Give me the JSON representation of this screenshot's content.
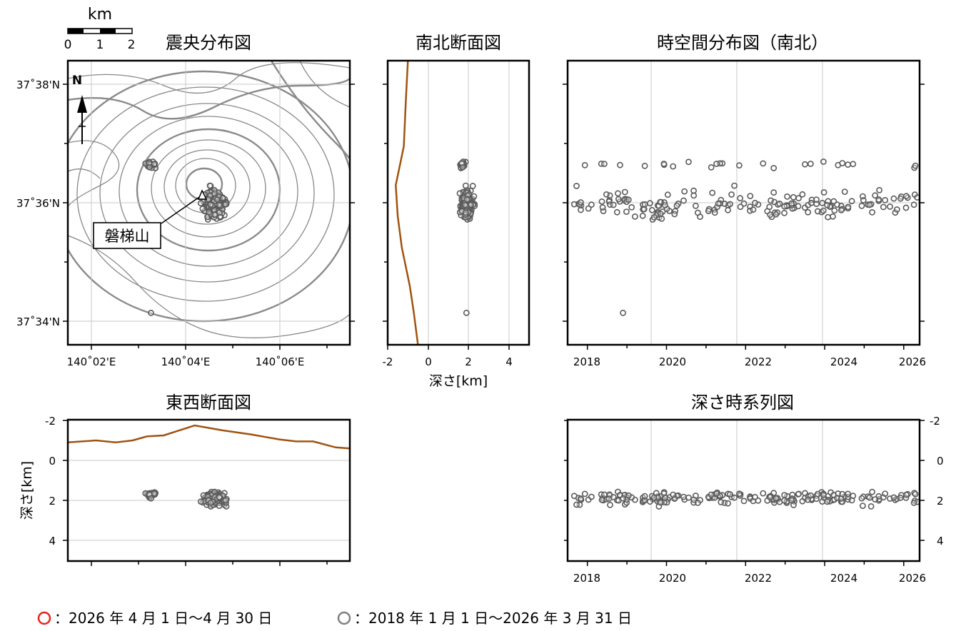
{
  "scalebar": {
    "unit": "km",
    "ticks": [
      "0",
      "1",
      "2"
    ]
  },
  "panels": {
    "map_title": "震央分布図",
    "ns_title": "南北断面図",
    "st_title": "時空間分布図（南北）",
    "ew_title": "東西断面図",
    "dt_title": "深さ時系列図"
  },
  "map": {
    "lat_labels": [
      "37˚38'N",
      "37˚36'N",
      "37˚34'N"
    ],
    "lon_labels": [
      "140˚02'E",
      "140˚04'E",
      "140˚06'E"
    ],
    "north_label": "N",
    "volcano_label": "磐梯山"
  },
  "ns_section": {
    "xlabel": "深さ[km]",
    "x_ticks": [
      "-2",
      "0",
      "2",
      "4"
    ]
  },
  "ew_section": {
    "ylabel": "深さ[km]",
    "y_ticks": [
      "-2",
      "0",
      "2",
      "4"
    ]
  },
  "time_axis": {
    "ticks": [
      "2018",
      "2020",
      "2022",
      "2024",
      "2026"
    ]
  },
  "depth_series": {
    "y_ticks": [
      "-2",
      "0",
      "2",
      "4"
    ]
  },
  "legend": {
    "recent_label": "：2026 年 4 月 1 日～4 月 30 日",
    "past_label": "：2018 年 1 月 1 日～2026 年 3 月 31 日",
    "recent_color": "#e8251f",
    "past_color": "#808080"
  },
  "chart_data": [
    {
      "type": "scatter",
      "title": "震央分布図",
      "xlabel": "",
      "ylabel": "",
      "xlim": [
        140.025,
        140.125
      ],
      "ylim": [
        37.567,
        37.64
      ],
      "clusters": [
        {
          "name": "main",
          "x": 140.077,
          "y": 37.603,
          "n": 170,
          "sx": 0.0035,
          "sy": 0.0035
        },
        {
          "name": "west",
          "x": 140.0545,
          "y": 37.6133,
          "n": 25,
          "sx": 0.002,
          "sy": 0.001
        },
        {
          "name": "south",
          "x": 140.0545,
          "y": 37.5752,
          "n": 1,
          "sx": 0,
          "sy": 0
        }
      ]
    },
    {
      "type": "scatter",
      "title": "南北断面図",
      "xlabel": "深さ[km]",
      "ylabel": "",
      "xlim": [
        -2,
        5
      ],
      "ylim": [
        37.567,
        37.64
      ],
      "topography_depth_km": [
        [
          -1.0,
          37.64
        ],
        [
          -1.1,
          37.63
        ],
        [
          -1.2,
          37.618
        ],
        [
          -1.6,
          37.608
        ],
        [
          -1.5,
          37.6
        ],
        [
          -1.3,
          37.592
        ],
        [
          -0.9,
          37.582
        ],
        [
          -0.7,
          37.575
        ],
        [
          -0.5,
          37.567
        ]
      ]
    },
    {
      "type": "scatter",
      "title": "時空間分布図（南北）",
      "xlabel": "",
      "ylabel": "",
      "xlim": [
        2017.5,
        2026.4
      ],
      "ylim": [
        37.567,
        37.64
      ],
      "band_lat": [
        37.6,
        37.613
      ],
      "isolated_event": {
        "x": 2018.9,
        "y": 37.5752
      }
    },
    {
      "type": "scatter",
      "title": "東西断面図",
      "xlabel": "",
      "ylabel": "深さ[km]",
      "xlim": [
        140.025,
        140.125
      ],
      "ylim": [
        5,
        -2.2
      ],
      "topography_depth_km": [
        [
          140.025,
          -0.9
        ],
        [
          140.035,
          -1.0
        ],
        [
          140.042,
          -0.9
        ],
        [
          140.048,
          -1.0
        ],
        [
          140.053,
          -1.2
        ],
        [
          140.059,
          -1.25
        ],
        [
          140.07,
          -1.75
        ],
        [
          140.08,
          -1.5
        ],
        [
          140.09,
          -1.3
        ],
        [
          140.1,
          -1.05
        ],
        [
          140.106,
          -0.95
        ],
        [
          140.112,
          -0.95
        ],
        [
          140.12,
          -0.65
        ],
        [
          140.125,
          -0.6
        ]
      ]
    },
    {
      "type": "scatter",
      "title": "深さ時系列図",
      "xlabel": "",
      "ylabel": "",
      "xlim": [
        2017.5,
        2026.4
      ],
      "ylim": [
        5,
        -2.2
      ],
      "depth_range_km": [
        1.0,
        2.8
      ]
    }
  ]
}
